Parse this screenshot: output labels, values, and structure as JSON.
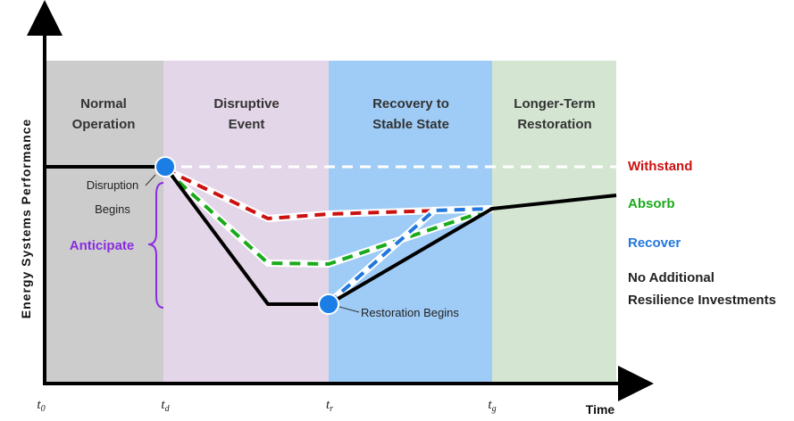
{
  "phases": [
    {
      "title_line1": "Normal",
      "title_line2": "Operation",
      "color": "#cccccc"
    },
    {
      "title_line1": "Disruptive",
      "title_line2": "Event",
      "color": "#e3d6e8"
    },
    {
      "title_line1": "Recovery to",
      "title_line2": "Stable State",
      "color": "#9fccf6"
    },
    {
      "title_line1": "Longer-Term",
      "title_line2": "Restoration",
      "color": "#d4e6d2"
    }
  ],
  "axes": {
    "y_label": "Energy Systems Performance",
    "x_label": "Time",
    "ticks": [
      {
        "base": "t",
        "sub": "0"
      },
      {
        "base": "t",
        "sub": "d"
      },
      {
        "base": "t",
        "sub": "r"
      },
      {
        "base": "t",
        "sub": "g"
      }
    ]
  },
  "annotations": {
    "disruption_line1": "Disruption",
    "disruption_line2": "Begins",
    "anticipate": "Anticipate",
    "restoration": "Restoration Begins"
  },
  "legend": {
    "withstand": {
      "label": "Withstand",
      "color": "#cc1111"
    },
    "absorb": {
      "label": "Absorb",
      "color": "#1aaa1a"
    },
    "recover": {
      "label": "Recover",
      "color": "#2277dd"
    },
    "no_investment_line1": "No Additional",
    "no_investment_line2": "Resilience Investments"
  },
  "colors": {
    "anticipate": "#8a2be2",
    "event_marker": "#1a7ee6",
    "baseline_line": "#000000",
    "prior_level_dash": "#ffffff"
  }
}
